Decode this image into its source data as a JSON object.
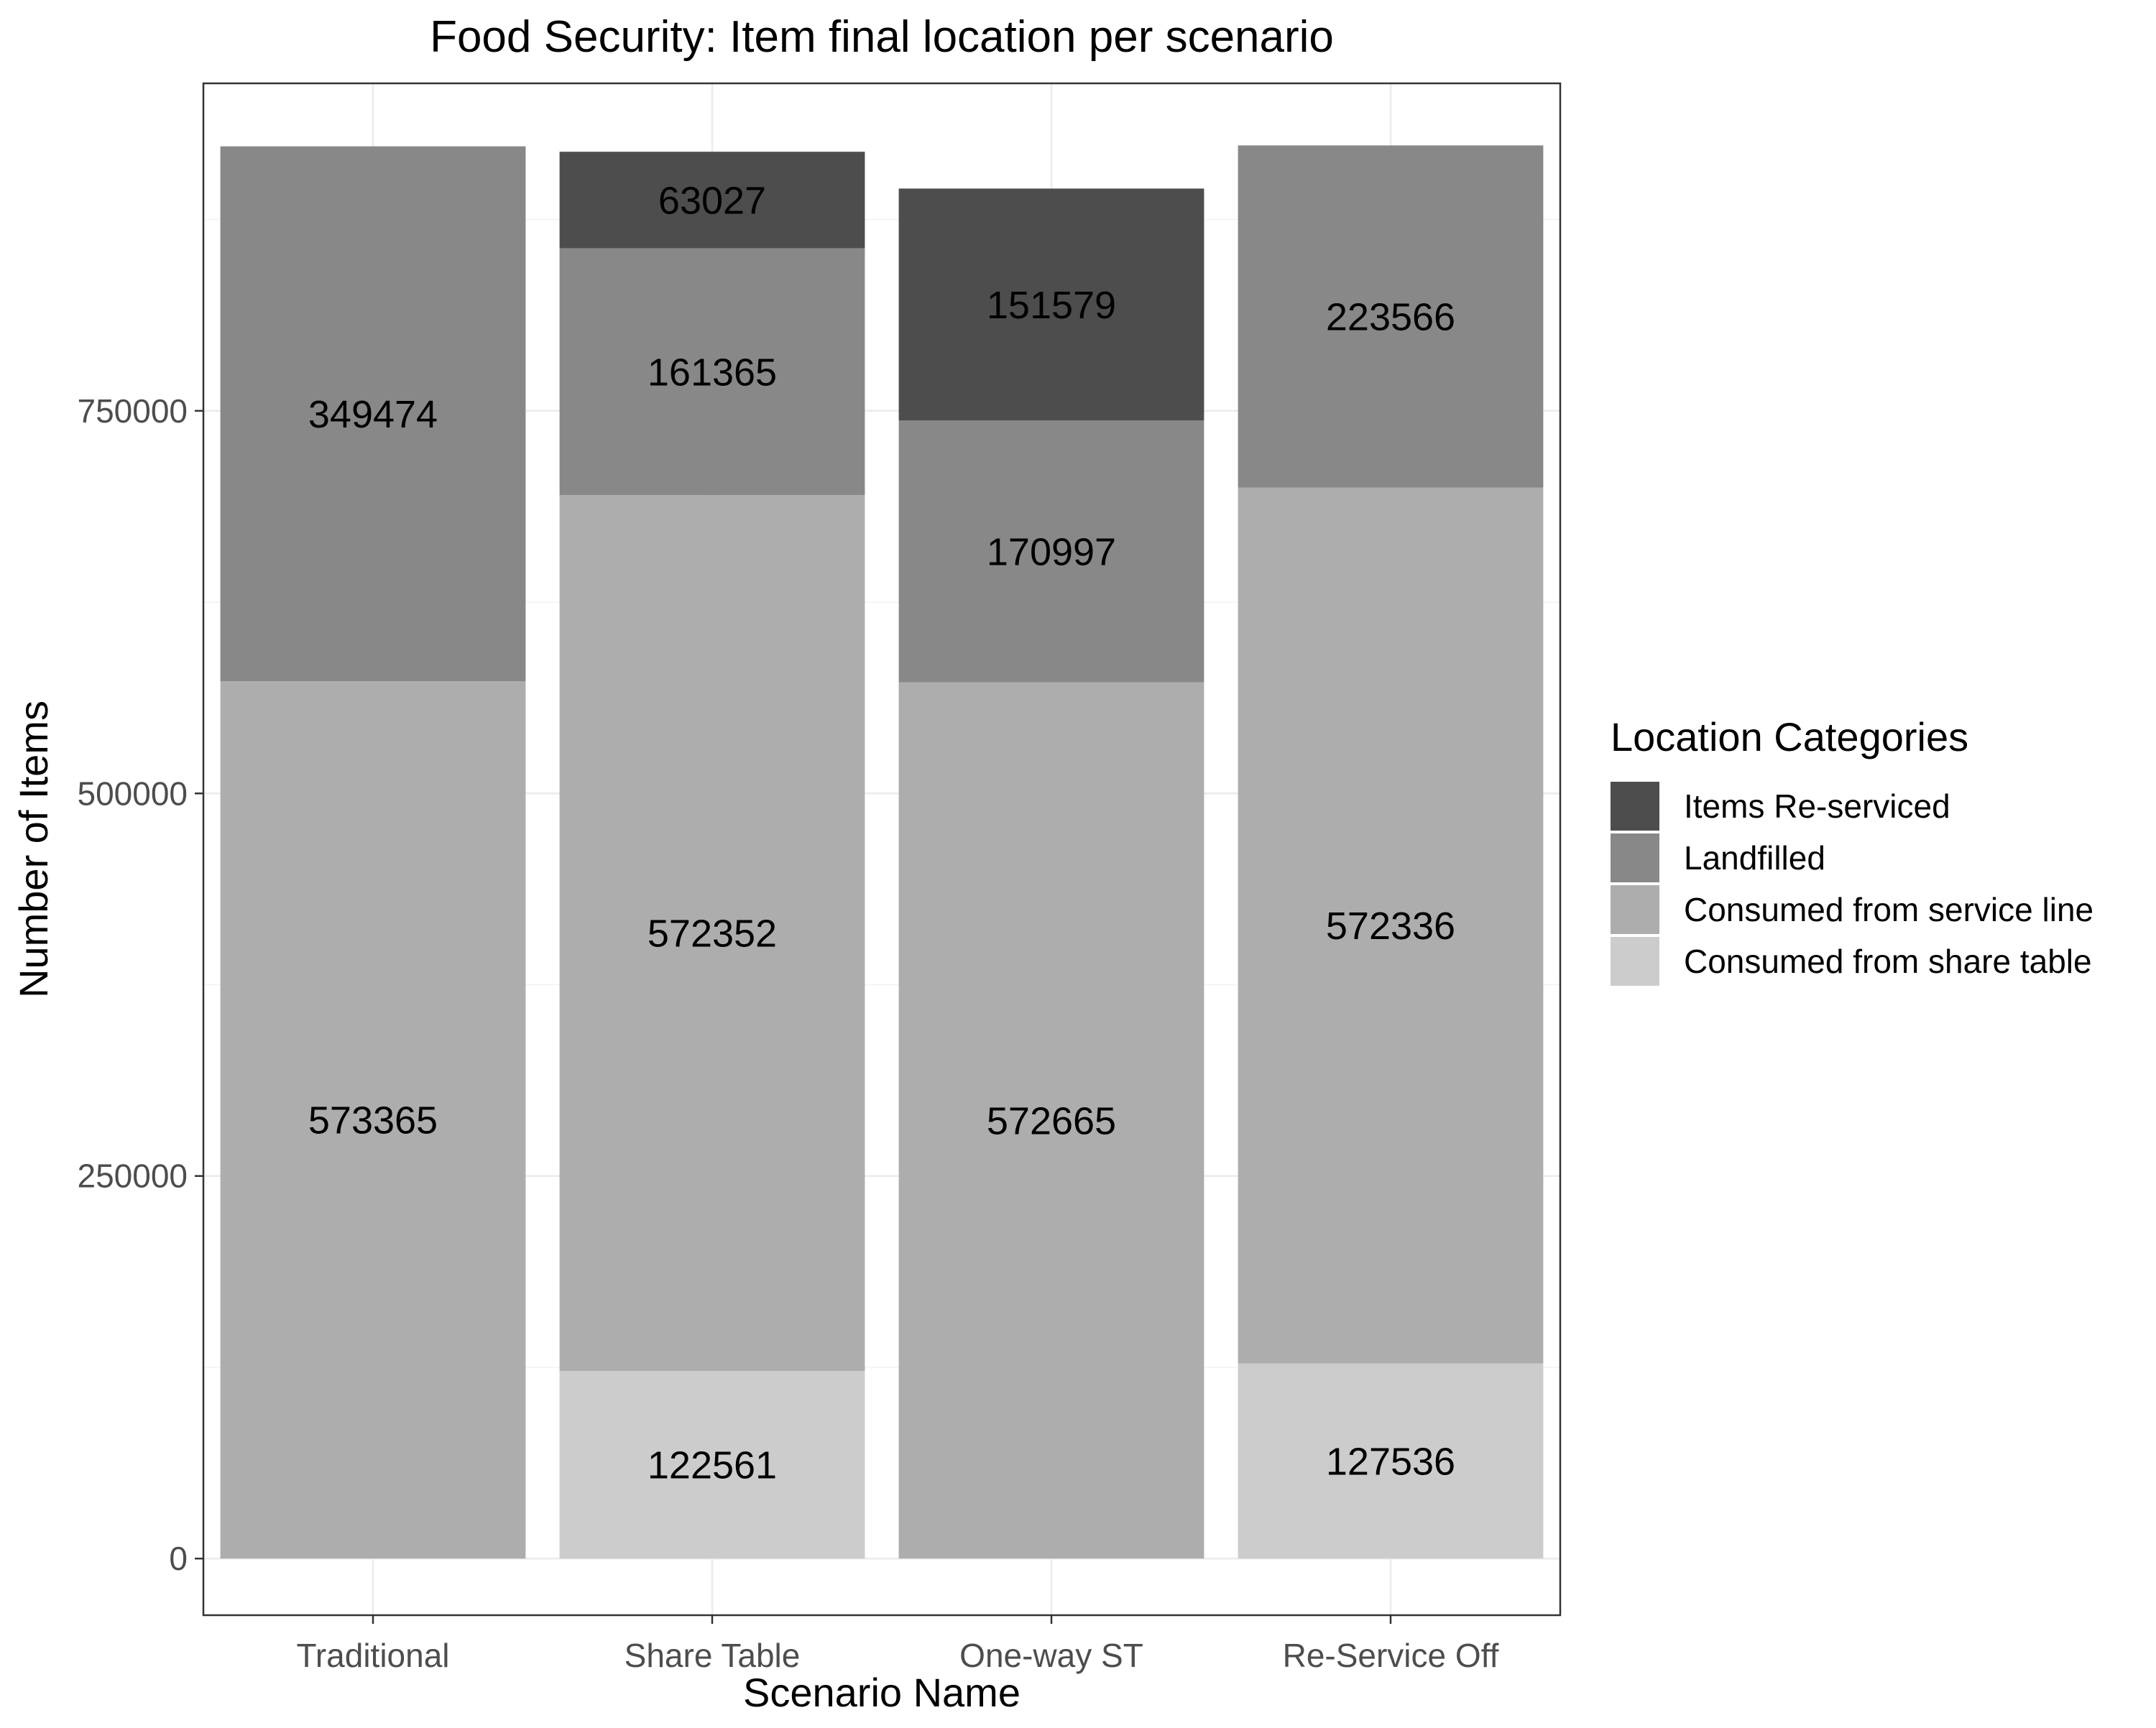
{
  "chart_data": {
    "type": "bar",
    "stacked": true,
    "title": "Food Security: Item final location per scenario",
    "xlabel": "Scenario Name",
    "ylabel": "Number of Items",
    "categories": [
      "Traditional",
      "Share Table",
      "One-way ST",
      "Re-Service Off"
    ],
    "ylim": [
      -37000,
      964000
    ],
    "yticks": [
      0,
      250000,
      500000,
      750000
    ],
    "ytick_labels": [
      "0",
      "250000",
      "500000",
      "750000"
    ],
    "grid": true,
    "legend": {
      "title": "Location Categories",
      "placement": "right"
    },
    "series": [
      {
        "name": "Consumed from share table",
        "color": "#cccccc",
        "values": [
          0,
          122561,
          0,
          127536
        ]
      },
      {
        "name": "Consumed from service line",
        "color": "#adadad",
        "values": [
          573365,
          572352,
          572665,
          572336
        ]
      },
      {
        "name": "Landfilled",
        "color": "#888888",
        "values": [
          349474,
          161365,
          170997,
          223566
        ]
      },
      {
        "name": "Items Re-serviced",
        "color": "#4d4d4d",
        "values": [
          0,
          63027,
          151579,
          0
        ]
      }
    ],
    "legend_order": [
      "Items Re-serviced",
      "Landfilled",
      "Consumed from service line",
      "Consumed from share table"
    ],
    "data_labels": true
  }
}
